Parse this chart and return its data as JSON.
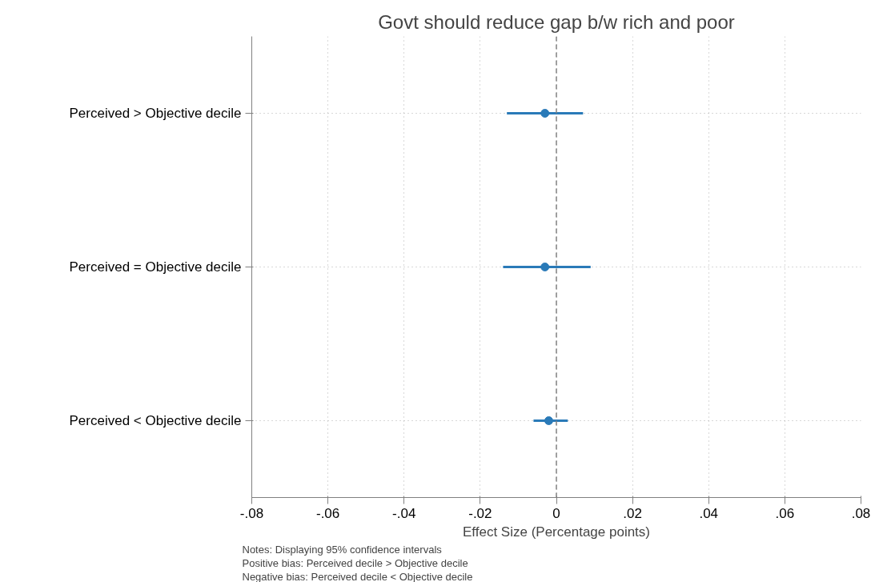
{
  "chart_data": {
    "type": "scatter",
    "orientation": "horizontal",
    "title": "Govt should reduce gap b/w rich and poor",
    "xlabel": "Effect Size (Percentage points)",
    "categories": [
      "Perceived > Objective decile",
      "Perceived = Objective decile",
      "Perceived < Objective decile"
    ],
    "series": [
      {
        "color": "#2a7ab8",
        "values": [
          -0.003,
          -0.003,
          -0.002
        ],
        "errors": [
          [
            -0.013,
            0.007
          ],
          [
            -0.014,
            0.009
          ],
          [
            -0.006,
            0.003
          ]
        ]
      }
    ],
    "marker": "circle",
    "xlim": [
      -0.08,
      0.08
    ],
    "xticks": [
      {
        "value": -0.08,
        "label": "-.08"
      },
      {
        "value": -0.06,
        "label": "-.06"
      },
      {
        "value": -0.04,
        "label": "-.04"
      },
      {
        "value": -0.02,
        "label": "-.02"
      },
      0,
      {
        "value": 0.02,
        "label": ".02"
      },
      {
        "value": 0.04,
        "label": ".04"
      },
      {
        "value": 0.06,
        "label": ".06"
      },
      {
        "value": 0.08,
        "label": ".08"
      }
    ],
    "grid": true,
    "ref_lines": [
      {
        "axis": "x",
        "value": 0,
        "color": "#808080",
        "line_style": "dashed"
      }
    ],
    "annotations": [
      "Notes: Displaying 95% confidence intervals",
      "Positive bias: Perceived decile > Objective decile",
      "Negative bias: Perceived decile < Objective decile"
    ]
  }
}
